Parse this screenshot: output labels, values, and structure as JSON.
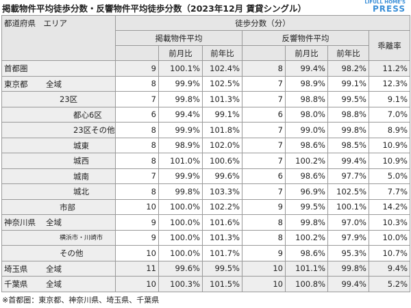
{
  "title": "掲載物件平均徒歩分数・反響物件平均徒歩分数（2023年12月 賃貸シングル）",
  "logo": {
    "line1": "LIFULL HOME'S",
    "line2": "PRESS"
  },
  "table": {
    "header": {
      "area": "都道府県　エリア",
      "group": "徒歩分数（分）",
      "listed": "掲載物件平均",
      "inquired": "反響物件平均",
      "gap": "乖離率",
      "sub": [
        "前月比",
        "前年比",
        "前月比",
        "前年比"
      ]
    },
    "rows": [
      {
        "pref": "首都圏",
        "values": [
          "9",
          "100.1%",
          "102.4%",
          "8",
          "99.4%",
          "98.2%",
          "11.2%"
        ]
      },
      {
        "pref": "東京都",
        "area": "全域",
        "values": [
          "8",
          "99.9%",
          "102.5%",
          "7",
          "98.9%",
          "99.1%",
          "12.3%"
        ]
      },
      {
        "area": "23区",
        "values": [
          "7",
          "99.8%",
          "101.3%",
          "7",
          "98.8%",
          "99.5%",
          "9.1%"
        ]
      },
      {
        "area": "都心6区",
        "values": [
          "6",
          "99.4%",
          "99.1%",
          "6",
          "98.0%",
          "98.8%",
          "7.0%"
        ]
      },
      {
        "area": "23区その他",
        "values": [
          "8",
          "99.9%",
          "101.8%",
          "7",
          "99.0%",
          "99.8%",
          "8.9%"
        ]
      },
      {
        "area": "城東",
        "values": [
          "8",
          "98.9%",
          "102.0%",
          "7",
          "98.6%",
          "98.5%",
          "10.9%"
        ]
      },
      {
        "area": "城西",
        "values": [
          "8",
          "101.0%",
          "100.6%",
          "7",
          "100.2%",
          "99.4%",
          "10.9%"
        ]
      },
      {
        "area": "城南",
        "values": [
          "7",
          "99.9%",
          "99.6%",
          "6",
          "98.6%",
          "97.7%",
          "5.0%"
        ]
      },
      {
        "area": "城北",
        "values": [
          "8",
          "99.8%",
          "103.3%",
          "7",
          "96.9%",
          "102.5%",
          "7.7%"
        ]
      },
      {
        "area": "市部",
        "values": [
          "10",
          "100.0%",
          "102.2%",
          "9",
          "99.5%",
          "100.1%",
          "14.2%"
        ]
      },
      {
        "pref": "神奈川県",
        "area": "全域",
        "values": [
          "9",
          "100.0%",
          "101.6%",
          "8",
          "99.8%",
          "97.0%",
          "10.3%"
        ]
      },
      {
        "area": "横浜市・川崎市",
        "values": [
          "9",
          "100.0%",
          "101.3%",
          "8",
          "100.2%",
          "97.9%",
          "10.0%"
        ]
      },
      {
        "area": "その他",
        "values": [
          "10",
          "100.0%",
          "101.7%",
          "9",
          "98.6%",
          "95.3%",
          "10.7%"
        ]
      },
      {
        "pref": "埼玉県",
        "area": "全域",
        "values": [
          "11",
          "99.6%",
          "99.5%",
          "10",
          "101.1%",
          "99.8%",
          "9.4%"
        ]
      },
      {
        "pref": "千葉県",
        "area": "全域",
        "values": [
          "10",
          "100.3%",
          "101.5%",
          "10",
          "100.8%",
          "99.4%",
          "5.2%"
        ]
      }
    ]
  },
  "footnote": "※首都圏：東京都、神奈川県、埼玉県、千葉県"
}
